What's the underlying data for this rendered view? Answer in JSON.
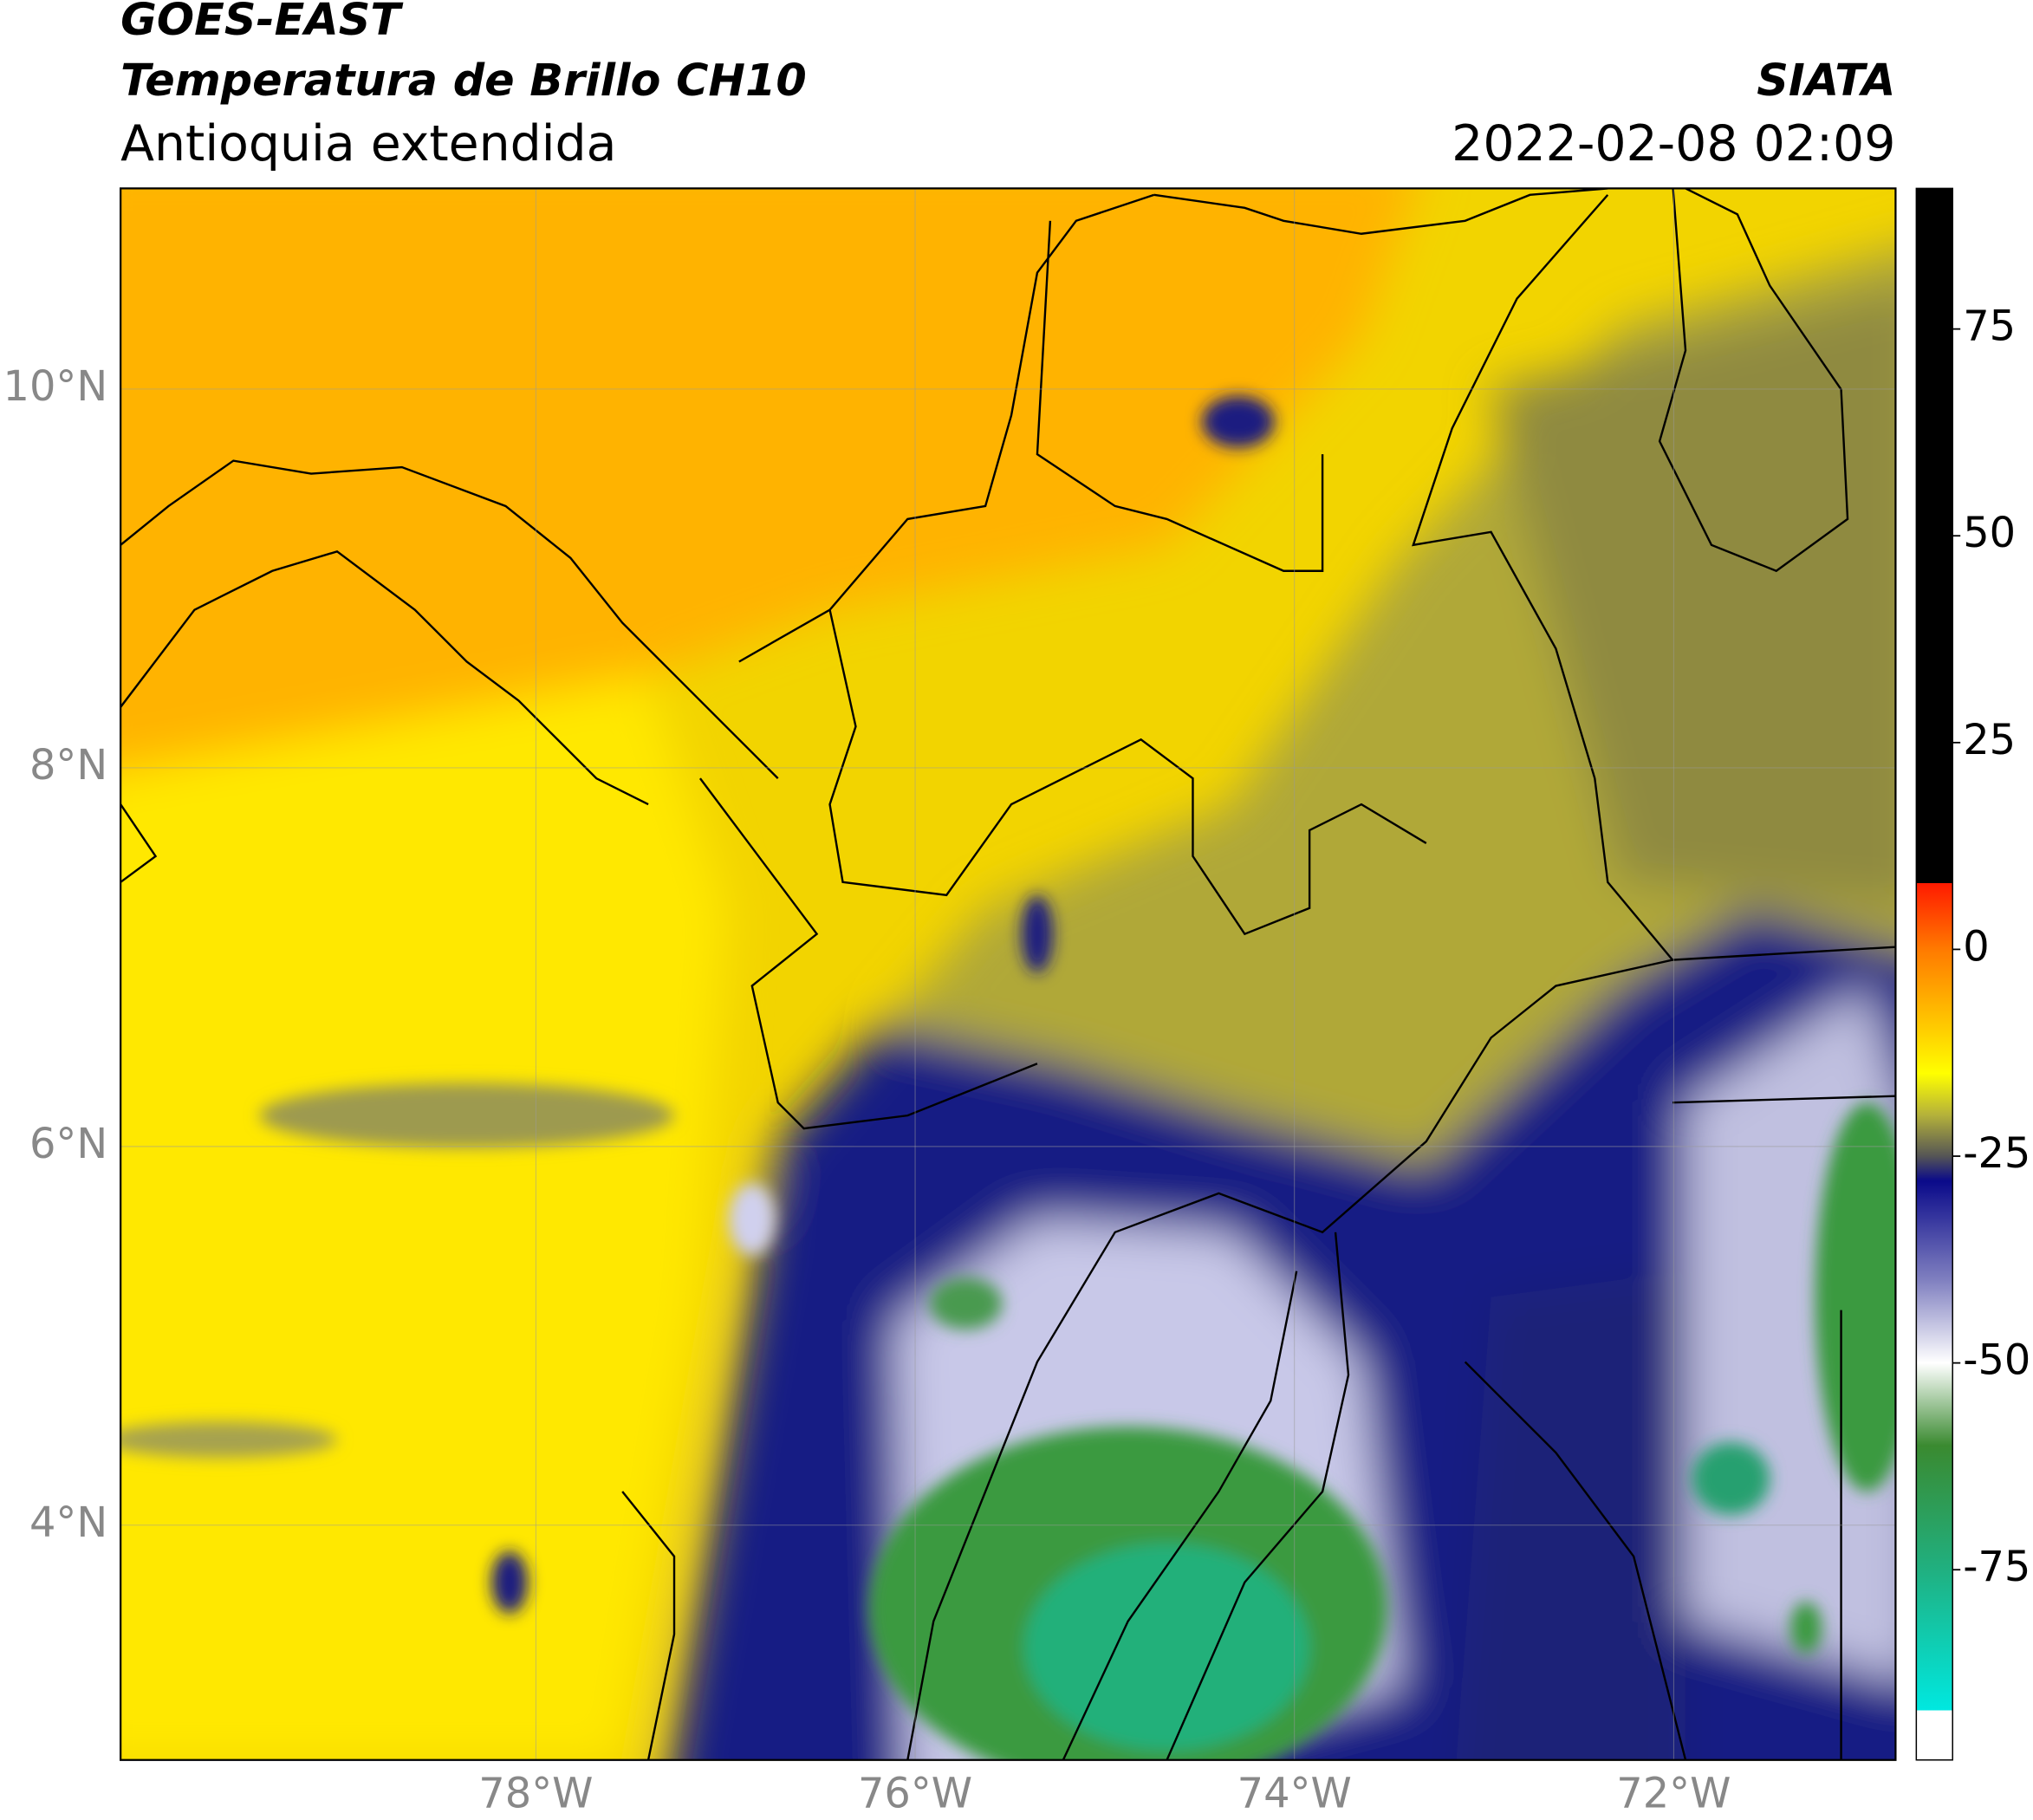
{
  "header": {
    "title": "GOES-EAST",
    "subtitle": "Temperatura de Brillo CH10",
    "region": "Antioquia extendida",
    "agency": "SIATA",
    "datetime": "2022-02-08 02:09"
  },
  "map": {
    "lonlim": [
      -80.19,
      -70.83
    ],
    "latlim": [
      2.76,
      11.06
    ],
    "xticks": [
      {
        "value": -78,
        "label": "78°W"
      },
      {
        "value": -76,
        "label": "76°W"
      },
      {
        "value": -74,
        "label": "74°W"
      },
      {
        "value": -72,
        "label": "72°W"
      }
    ],
    "yticks": [
      {
        "value": 4,
        "label": "4°N"
      },
      {
        "value": 6,
        "label": "6°N"
      },
      {
        "value": 8,
        "label": "8°N"
      },
      {
        "value": 10,
        "label": "10°N"
      }
    ]
  },
  "colorbar": {
    "lim": [
      -98,
      92
    ],
    "ticks": [
      75,
      50,
      25,
      0,
      -25,
      -50,
      -75
    ],
    "colormap": [
      {
        "value": 92,
        "color": "#000000"
      },
      {
        "value": 8,
        "color": "#000000"
      },
      {
        "value": 8,
        "color": "#ff1a00"
      },
      {
        "value": 0,
        "color": "#ff7a00"
      },
      {
        "value": -10,
        "color": "#ffd000"
      },
      {
        "value": -15,
        "color": "#ffff00"
      },
      {
        "value": -20,
        "color": "#b5b23a"
      },
      {
        "value": -25,
        "color": "#555555"
      },
      {
        "value": -28,
        "color": "#0a0a8a"
      },
      {
        "value": -40,
        "color": "#8080c0"
      },
      {
        "value": -50,
        "color": "#ffffff"
      },
      {
        "value": -60,
        "color": "#3a8a30"
      },
      {
        "value": -75,
        "color": "#20b080"
      },
      {
        "value": -92,
        "color": "#00e8e0"
      },
      {
        "value": -92,
        "color": "#ffffff"
      },
      {
        "value": -98,
        "color": "#ffffff"
      }
    ]
  }
}
